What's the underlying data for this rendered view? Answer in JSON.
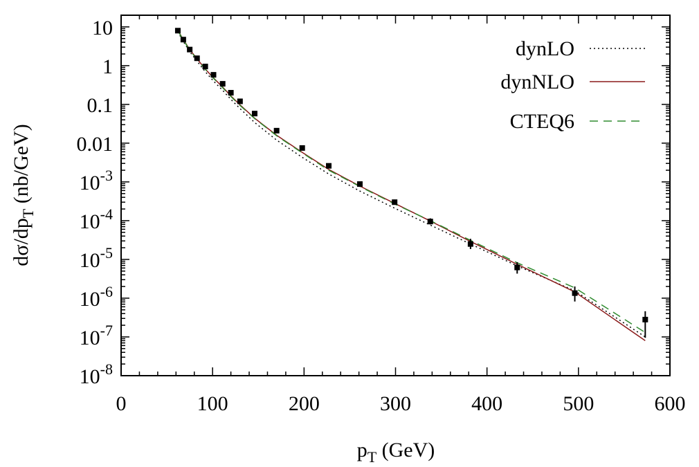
{
  "chart_data": {
    "type": "line",
    "title": "",
    "xlabel": {
      "main": "p",
      "sub": "T",
      "rest": " (GeV)"
    },
    "ylabel": {
      "pre": "dσ/dp",
      "sub": "T",
      "rest": " (nb/GeV)"
    },
    "xlim": [
      0,
      600
    ],
    "ylim": [
      1e-08,
      20
    ],
    "yscale": "log",
    "grid": false,
    "legend_position": "top-right",
    "x_ticks": [
      {
        "value": 0,
        "label": "0"
      },
      {
        "value": 100,
        "label": "100"
      },
      {
        "value": 200,
        "label": "200"
      },
      {
        "value": 300,
        "label": "300"
      },
      {
        "value": 400,
        "label": "400"
      },
      {
        "value": 500,
        "label": "500"
      },
      {
        "value": 600,
        "label": "600"
      }
    ],
    "y_ticks": [
      {
        "value": 10,
        "label": "10",
        "exp": ""
      },
      {
        "value": 1,
        "label": "1",
        "exp": ""
      },
      {
        "value": 0.1,
        "label": "0.1",
        "exp": ""
      },
      {
        "value": 0.01,
        "label": "0.01",
        "exp": ""
      },
      {
        "value": 0.001,
        "label": "10",
        "exp": "-3"
      },
      {
        "value": 0.0001,
        "label": "10",
        "exp": "-4"
      },
      {
        "value": 1e-05,
        "label": "10",
        "exp": "-5"
      },
      {
        "value": 1e-06,
        "label": "10",
        "exp": "-6"
      },
      {
        "value": 1e-07,
        "label": "10",
        "exp": "-7"
      },
      {
        "value": 1e-08,
        "label": "10",
        "exp": "-8"
      }
    ],
    "series": [
      {
        "name": "dynLO",
        "style": "dotted",
        "color": "#000000",
        "x": [
          62,
          68,
          75,
          83,
          92,
          101,
          111,
          120,
          130,
          146,
          170,
          198,
          227,
          261,
          299,
          338,
          382,
          433,
          496,
          573
        ],
        "y": [
          7.5,
          4.2,
          2.3,
          1.3,
          0.7,
          0.4,
          0.23,
          0.135,
          0.078,
          0.034,
          0.012,
          0.0043,
          0.0016,
          0.00058,
          0.00021,
          7.7e-05,
          2.5e-05,
          6.8e-06,
          1.55e-06,
          1e-07
        ]
      },
      {
        "name": "dynNLO",
        "style": "solid",
        "color": "#8b1a1a",
        "x": [
          62,
          68,
          75,
          83,
          92,
          101,
          111,
          120,
          130,
          146,
          170,
          198,
          227,
          261,
          299,
          338,
          382,
          433,
          496,
          573
        ],
        "y": [
          8.2,
          4.7,
          2.6,
          1.5,
          0.82,
          0.48,
          0.28,
          0.165,
          0.097,
          0.044,
          0.016,
          0.0058,
          0.0021,
          0.00078,
          0.00028,
          9.8e-05,
          2.9e-05,
          7.5e-06,
          1.45e-06,
          8e-08
        ]
      },
      {
        "name": "CTEQ6",
        "style": "dashed",
        "color": "#2e8b2e",
        "x": [
          62,
          68,
          75,
          83,
          92,
          101,
          111,
          120,
          130,
          146,
          170,
          198,
          227,
          261,
          299,
          338,
          382,
          433,
          496,
          573
        ],
        "y": [
          8.0,
          4.6,
          2.5,
          1.45,
          0.8,
          0.47,
          0.27,
          0.16,
          0.094,
          0.043,
          0.0155,
          0.0056,
          0.002,
          0.00076,
          0.00027,
          0.0001,
          3.1e-05,
          8.2e-06,
          1.85e-06,
          1.3e-07
        ]
      }
    ],
    "data_points": {
      "x": [
        62,
        68,
        75,
        83,
        92,
        101,
        111,
        120,
        130,
        146,
        170,
        198,
        227,
        261,
        299,
        338,
        382,
        433,
        496,
        573
      ],
      "y": [
        8.0,
        4.7,
        2.6,
        1.55,
        0.95,
        0.58,
        0.34,
        0.2,
        0.12,
        0.058,
        0.021,
        0.0075,
        0.0026,
        0.00088,
        0.0003,
        9.5e-05,
        2.5e-05,
        6.2e-06,
        1.35e-06,
        2.8e-07
      ],
      "err_lo": [
        7.6,
        4.45,
        2.48,
        1.48,
        0.9,
        0.55,
        0.32,
        0.19,
        0.113,
        0.054,
        0.0196,
        0.0069,
        0.0024,
        0.0008,
        0.00026,
        8e-05,
        1.85e-05,
        4.3e-06,
        8.2e-07,
        9.5e-08
      ],
      "err_hi": [
        8.4,
        4.95,
        2.72,
        1.62,
        1.0,
        0.61,
        0.36,
        0.21,
        0.127,
        0.062,
        0.0224,
        0.0081,
        0.0028,
        0.00097,
        0.00035,
        0.000115,
        3.4e-05,
        8.5e-06,
        2e-06,
        4.6e-07
      ]
    }
  }
}
